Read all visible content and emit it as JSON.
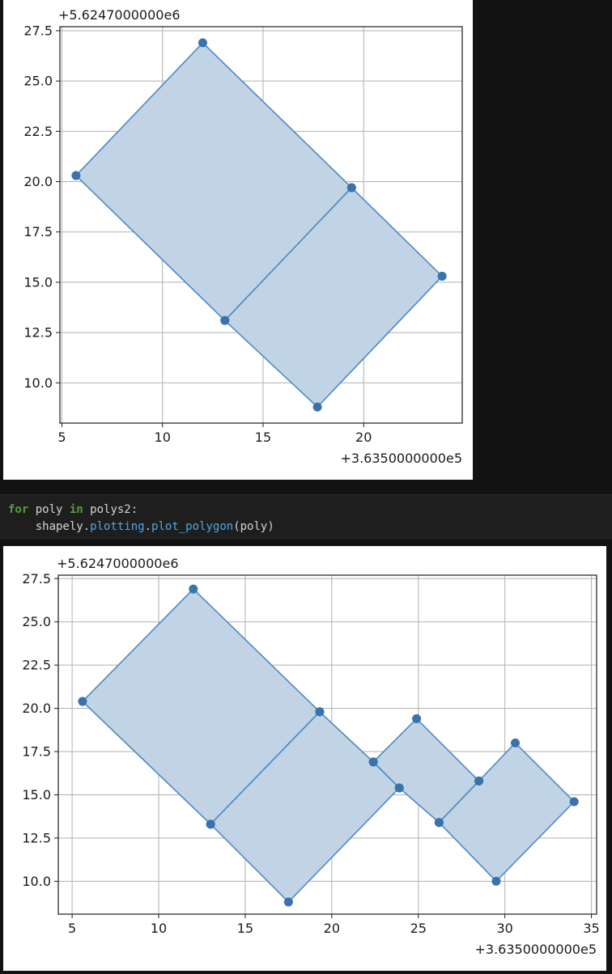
{
  "code_cell": {
    "line1": {
      "kw_for": "for",
      "var": " poly ",
      "kw_in": "in",
      "iter": " polys2:"
    },
    "line2": {
      "indent": "    ",
      "mod": "shapely.",
      "attr": "plotting",
      "dot": ".",
      "func": "plot_polygon",
      "args": "(poly)"
    }
  },
  "chart_data": [
    {
      "type": "area",
      "x_offset_label": "+3.6350000000e5",
      "y_offset_label": "+5.6247000000e6",
      "xlim": [
        4.9,
        24.9
      ],
      "ylim": [
        8.0,
        27.7
      ],
      "xticks": [
        5,
        10,
        15,
        20
      ],
      "yticks": [
        10.0,
        12.5,
        15.0,
        17.5,
        20.0,
        22.5,
        25.0,
        27.5
      ],
      "ytick_labels": [
        "10.0",
        "12.5",
        "15.0",
        "17.5",
        "20.0",
        "22.5",
        "25.0",
        "27.5"
      ],
      "grid": true,
      "fill_color": "#c1d4e6",
      "edge_color": "#4f88c0",
      "marker_color": "#3a72ad",
      "polygons": [
        {
          "points": [
            [
              5.7,
              20.3
            ],
            [
              12.0,
              26.9
            ],
            [
              19.4,
              19.7
            ],
            [
              13.1,
              13.1
            ]
          ]
        },
        {
          "points": [
            [
              13.1,
              13.1
            ],
            [
              19.4,
              19.7
            ],
            [
              23.9,
              15.3
            ],
            [
              17.7,
              8.8
            ]
          ]
        }
      ]
    },
    {
      "type": "area",
      "x_offset_label": "+3.6350000000e5",
      "y_offset_label": "+5.6247000000e6",
      "xlim": [
        4.2,
        35.3
      ],
      "ylim": [
        8.1,
        27.7
      ],
      "xticks": [
        5,
        10,
        15,
        20,
        25,
        30,
        35
      ],
      "yticks": [
        10.0,
        12.5,
        15.0,
        17.5,
        20.0,
        22.5,
        25.0,
        27.5
      ],
      "ytick_labels": [
        "10.0",
        "12.5",
        "15.0",
        "17.5",
        "20.0",
        "22.5",
        "25.0",
        "27.5"
      ],
      "grid": true,
      "fill_color": "#c1d4e6",
      "edge_color": "#4f88c0",
      "marker_color": "#3a72ad",
      "polygons": [
        {
          "points": [
            [
              5.6,
              20.4
            ],
            [
              12.0,
              26.9
            ],
            [
              19.3,
              19.8
            ],
            [
              13.0,
              13.3
            ]
          ]
        },
        {
          "points": [
            [
              13.0,
              13.3
            ],
            [
              19.3,
              19.8
            ],
            [
              22.4,
              16.9
            ],
            [
              23.9,
              15.4
            ],
            [
              17.5,
              8.8
            ]
          ]
        },
        {
          "points": [
            [
              22.4,
              16.9
            ],
            [
              24.9,
              19.4
            ],
            [
              28.5,
              15.8
            ],
            [
              26.2,
              13.4
            ],
            [
              23.9,
              15.4
            ]
          ]
        },
        {
          "points": [
            [
              26.2,
              13.4
            ],
            [
              28.5,
              15.8
            ],
            [
              30.6,
              18.0
            ],
            [
              34.0,
              14.6
            ],
            [
              29.5,
              10.0
            ]
          ]
        }
      ]
    }
  ]
}
